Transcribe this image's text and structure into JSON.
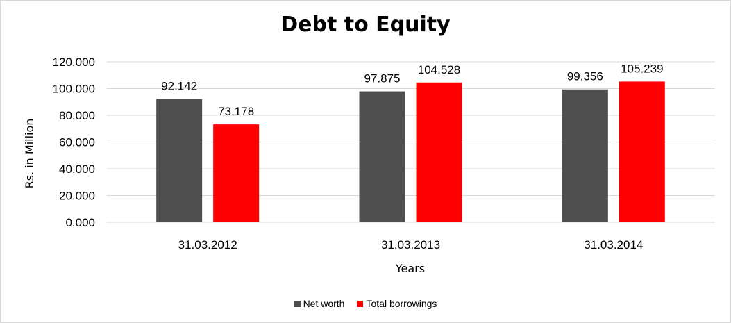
{
  "chart_data": {
    "type": "bar",
    "title": "Debt to Equity",
    "xlabel": "Years",
    "ylabel": "Rs. in Million",
    "categories": [
      "31.03.2012",
      "31.03.2013",
      "31.03.2014"
    ],
    "series": [
      {
        "name": "Net worth",
        "values": [
          92.142,
          97.875,
          99.356
        ],
        "labels": [
          "92.142",
          "97.875",
          "99.356"
        ],
        "color": "#4f4f4f"
      },
      {
        "name": "Total borrowings",
        "values": [
          73.178,
          104.528,
          105.239
        ],
        "labels": [
          "73.178",
          "104.528",
          "105.239"
        ],
        "color": "#ff0000"
      }
    ],
    "ylim": [
      0,
      120
    ],
    "yticks": [
      0,
      20,
      40,
      60,
      80,
      100,
      120
    ],
    "ytick_labels": [
      "0.000",
      "20.000",
      "40.000",
      "60.000",
      "80.000",
      "100.000",
      "120.000"
    ],
    "grid": true,
    "legend_position": "bottom",
    "gridline_color": "#d9d9d9"
  }
}
